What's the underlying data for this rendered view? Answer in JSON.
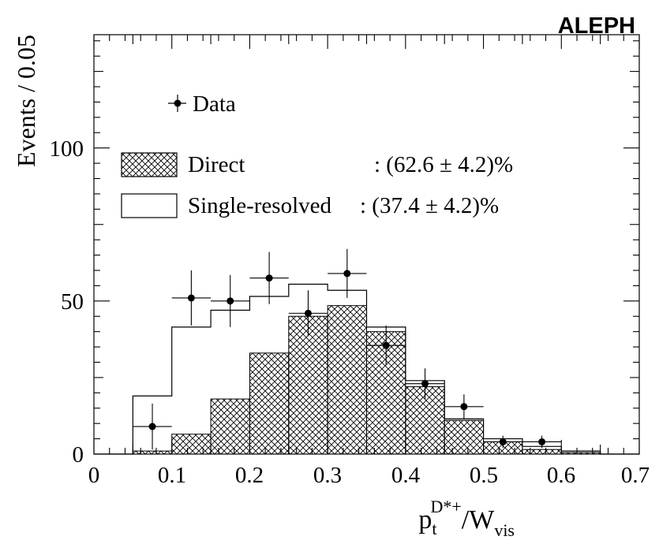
{
  "chart_data": {
    "type": "histogram",
    "experiment_label": "ALEPH",
    "ylabel": "Events / 0.05",
    "xlabel": {
      "base": "p",
      "sub": "t",
      "sup": "D*+",
      "rest": "/W",
      "rest_sub": "vis"
    },
    "xlim": [
      0,
      0.7
    ],
    "ylim": [
      0,
      137
    ],
    "x_ticks": [
      0,
      0.1,
      0.2,
      0.3,
      0.4,
      0.5,
      0.6,
      0.7
    ],
    "x_tick_labels": [
      "0",
      "0.1",
      "0.2",
      "0.3",
      "0.4",
      "0.5",
      "0.6",
      "0.7"
    ],
    "y_ticks": [
      0,
      50,
      100
    ],
    "y_tick_labels": [
      "0",
      "50",
      "100"
    ],
    "bin_edges": [
      0,
      0.05,
      0.1,
      0.15,
      0.2,
      0.25,
      0.3,
      0.35,
      0.4,
      0.45,
      0.5,
      0.55,
      0.6,
      0.65,
      0.7
    ],
    "direct": [
      0,
      1,
      6.5,
      18,
      33,
      45,
      48.5,
      40,
      22,
      11,
      4,
      1.5,
      0.5,
      0
    ],
    "total": [
      0,
      19,
      41.5,
      47,
      51.5,
      55.5,
      53.5,
      41.5,
      24,
      11.5,
      5,
      2.5,
      1,
      0
    ],
    "data": {
      "x": [
        0.075,
        0.125,
        0.175,
        0.225,
        0.275,
        0.325,
        0.375,
        0.425,
        0.475,
        0.525,
        0.575
      ],
      "y": [
        9,
        51,
        50,
        57.5,
        46,
        59,
        35.5,
        23,
        15.5,
        4,
        4
      ],
      "err": [
        7.5,
        9,
        8.5,
        8.5,
        7.5,
        8,
        6.5,
        5,
        4,
        2,
        2
      ]
    },
    "legend": {
      "data_label": "Data",
      "direct_label": "Direct",
      "direct_value": ": (62.6 ± 4.2)%",
      "single_label": "Single-resolved",
      "single_value": ": (37.4 ± 4.2)%"
    }
  }
}
